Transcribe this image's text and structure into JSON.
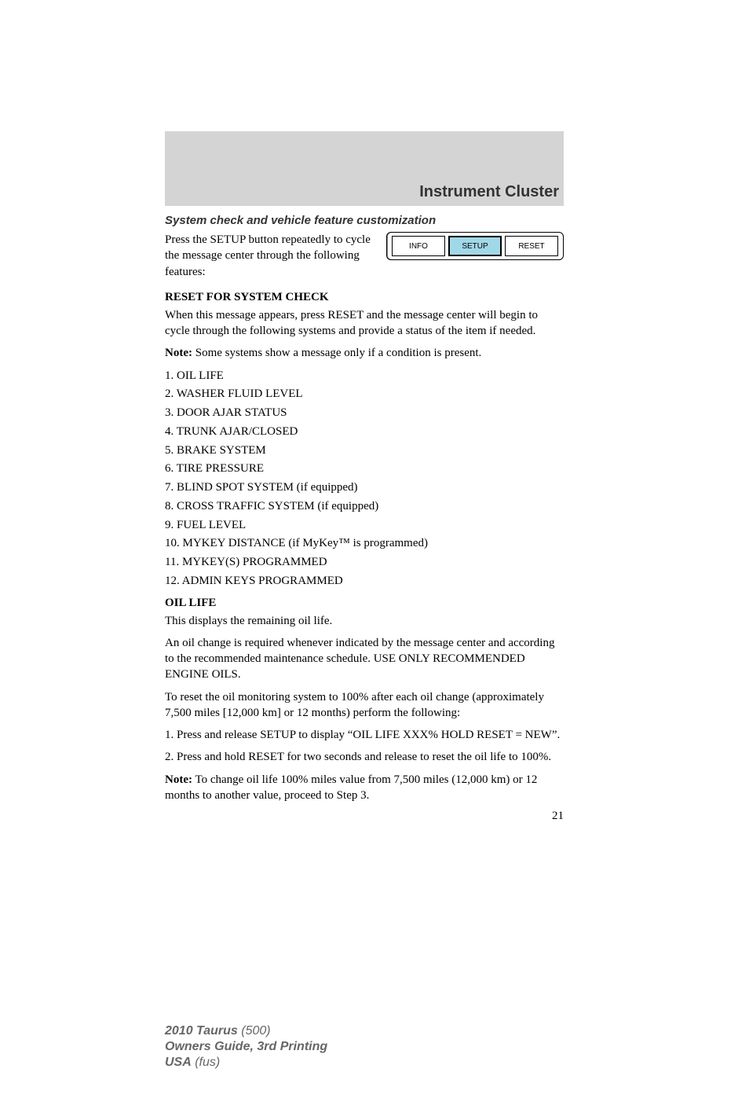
{
  "header": {
    "section_title": "Instrument Cluster"
  },
  "subheading1": "System check and vehicle feature customization",
  "intro": "Press the SETUP button repeatedly to cycle the message center through the following features:",
  "buttons": {
    "info": "INFO",
    "setup": "SETUP",
    "reset": "RESET",
    "highlighted_color": "#a0d8e8"
  },
  "reset_heading": "RESET FOR SYSTEM CHECK",
  "reset_para": "When this message appears, press RESET and the message center will begin to cycle through the following systems and provide a status of the item if needed.",
  "note1_label": "Note:",
  "note1_text": " Some systems show a message only if a condition is present.",
  "system_list": [
    "1. OIL LIFE",
    "2. WASHER FLUID LEVEL",
    "3. DOOR AJAR STATUS",
    "4. TRUNK AJAR/CLOSED",
    "5. BRAKE SYSTEM",
    "6. TIRE PRESSURE",
    "7. BLIND SPOT SYSTEM (if equipped)",
    "8. CROSS TRAFFIC SYSTEM (if equipped)",
    "9. FUEL LEVEL",
    "10. MYKEY DISTANCE (if MyKey™ is programmed)",
    "11. MYKEY(S) PROGRAMMED",
    "12. ADMIN KEYS PROGRAMMED"
  ],
  "oil_heading": "OIL LIFE",
  "oil_p1": "This displays the remaining oil life.",
  "oil_p2": "An oil change is required whenever indicated by the message center and according to the recommended maintenance schedule. USE ONLY RECOMMENDED ENGINE OILS.",
  "oil_p3": "To reset the oil monitoring system to 100% after each oil change (approximately 7,500 miles [12,000 km] or 12 months) perform the following:",
  "oil_step1": "1. Press and release SETUP to display “OIL LIFE XXX% HOLD RESET = NEW”.",
  "oil_step2": "2. Press and hold RESET for two seconds and release to reset the oil life to 100%.",
  "note2_label": "Note:",
  "note2_text": " To change oil life 100% miles value from 7,500 miles (12,000 km) or 12 months to another value, proceed to Step 3.",
  "page_number": "21",
  "footer": {
    "line1_bold": "2010 Taurus",
    "line1_light": " (500)",
    "line2": "Owners Guide, 3rd Printing",
    "line3_bold": "USA",
    "line3_light": " (fus)"
  },
  "colors": {
    "header_bg": "#d4d4d4",
    "text": "#000000",
    "footer_text": "#666666",
    "section_title": "#333333"
  }
}
